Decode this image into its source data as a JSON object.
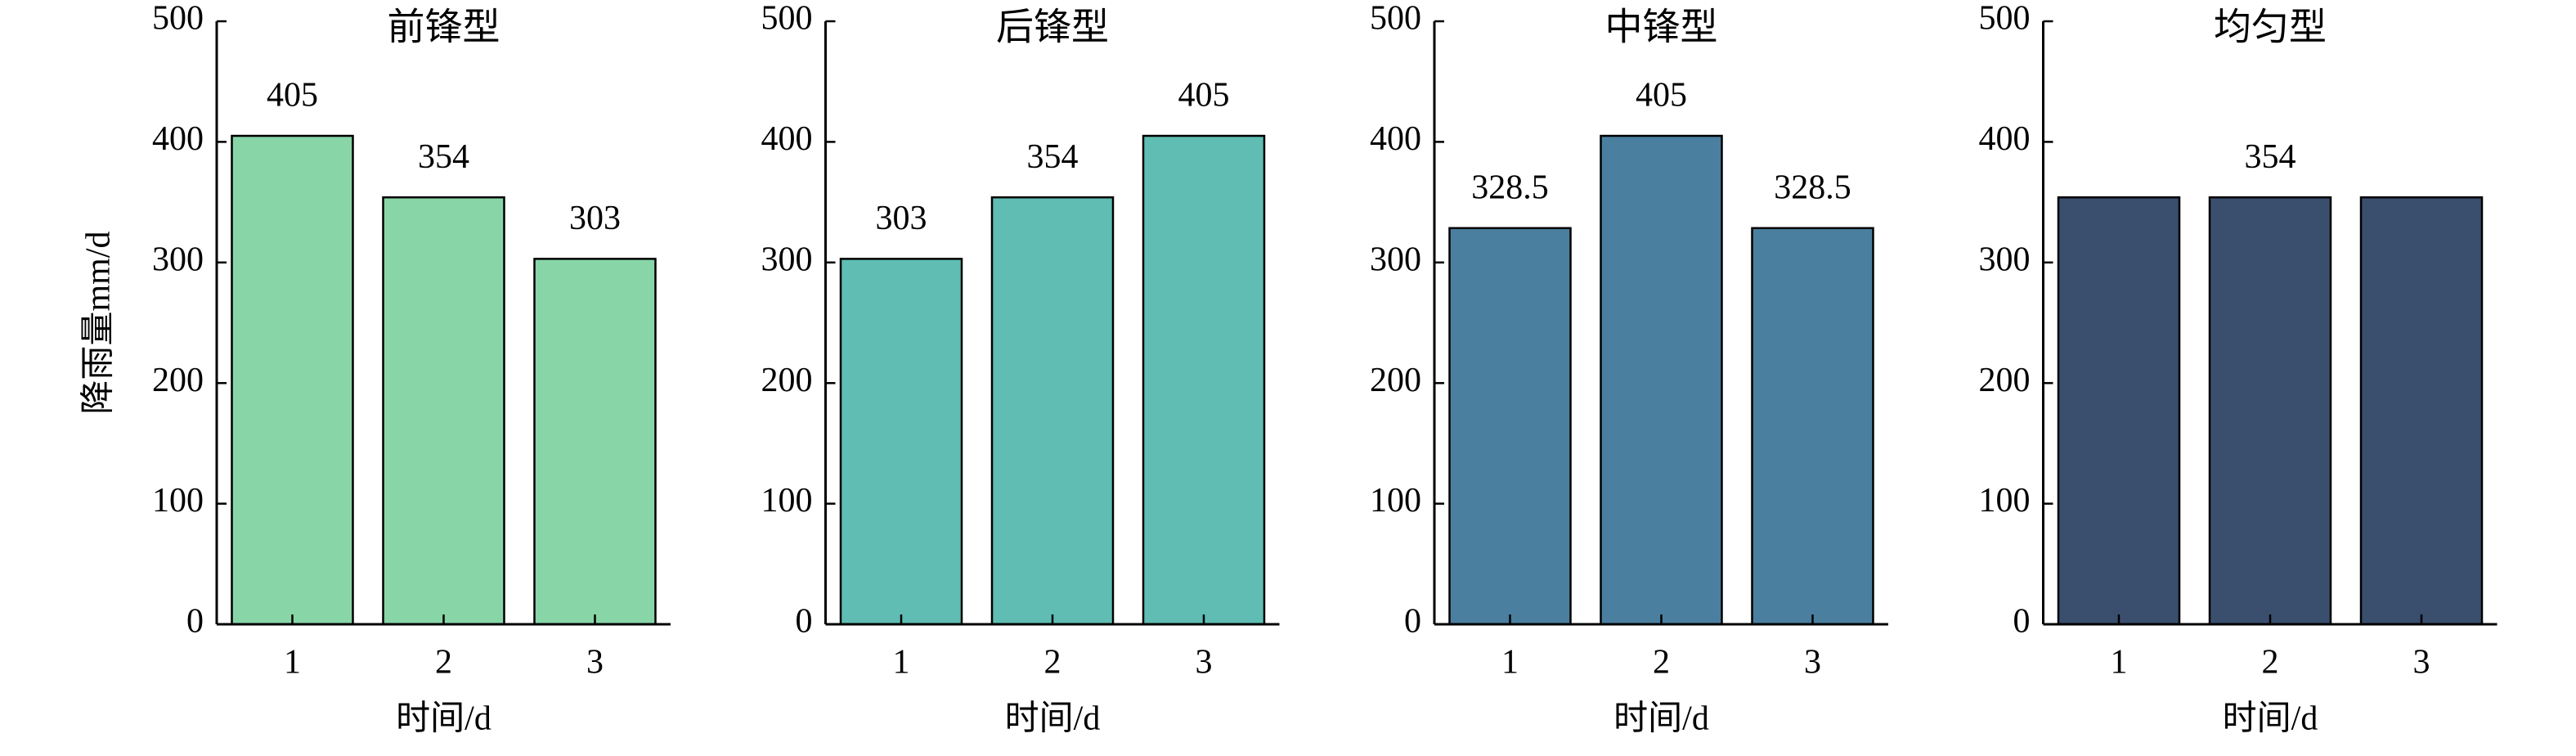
{
  "chart_data": [
    {
      "type": "bar",
      "title": "前锋型",
      "categories": [
        "1",
        "2",
        "3"
      ],
      "values": [
        405,
        354,
        303
      ],
      "color": "#88d5a8",
      "ylim": [
        0,
        500
      ],
      "yticks": [
        0,
        100,
        200,
        300,
        400,
        500
      ],
      "xlabel": "时间/d",
      "ylabel": "降雨量mm/d"
    },
    {
      "type": "bar",
      "title": "后锋型",
      "categories": [
        "1",
        "2",
        "3"
      ],
      "values": [
        303,
        354,
        405
      ],
      "color": "#5fbdb3",
      "ylim": [
        0,
        500
      ],
      "yticks": [
        0,
        100,
        200,
        300,
        400,
        500
      ],
      "xlabel": "时间/d"
    },
    {
      "type": "bar",
      "title": "中锋型",
      "categories": [
        "1",
        "2",
        "3"
      ],
      "values": [
        328.5,
        405,
        328.5
      ],
      "color": "#4a7fa0",
      "ylim": [
        0,
        500
      ],
      "yticks": [
        0,
        100,
        200,
        300,
        400,
        500
      ],
      "xlabel": "时间/d"
    },
    {
      "type": "bar",
      "title": "均匀型",
      "categories": [
        "1",
        "2",
        "3"
      ],
      "values": [
        354,
        354,
        354
      ],
      "value_labels": [
        null,
        "354",
        null
      ],
      "color": "#3a4e6e",
      "ylim": [
        0,
        500
      ],
      "yticks": [
        0,
        100,
        200,
        300,
        400,
        500
      ],
      "xlabel": "时间/d"
    }
  ]
}
